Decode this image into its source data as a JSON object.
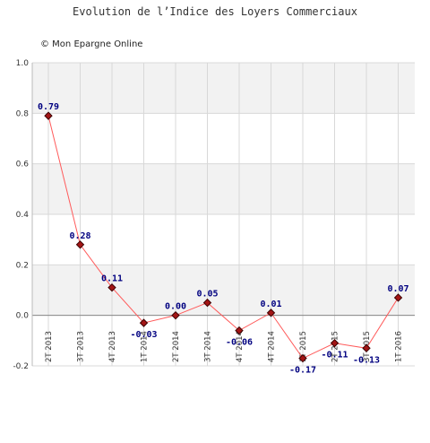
{
  "chart_data": {
    "type": "line",
    "title": "Evolution de l’Indice des Loyers Commerciaux",
    "credit": "© Mon Epargne Online",
    "categories": [
      "2T 2013",
      "3T 2013",
      "4T 2013",
      "1T 2014",
      "2T 2014",
      "3T 2014",
      "4T 2014",
      "4T 2014",
      "1T 2015",
      "2T 2015",
      "3T 2015",
      "1T 2016"
    ],
    "values": [
      0.79,
      0.28,
      0.11,
      -0.03,
      0.0,
      0.05,
      -0.06,
      0.01,
      -0.17,
      -0.11,
      -0.13,
      0.07
    ],
    "data_labels": [
      "0.79",
      "0.28",
      "0.11",
      "-0.03",
      "0.00",
      "0.05",
      "-0.06",
      "0.01",
      "-0.17",
      "-0.11",
      "-0.13",
      "0.07"
    ],
    "y_ticks": [
      "1.0",
      "0.8",
      "0.6",
      "0.4",
      "0.2",
      "0.0",
      "-0.2"
    ],
    "ylim": [
      -0.2,
      1.0
    ],
    "grid": true,
    "xlabel": "",
    "ylabel": "",
    "colors": {
      "line": "#ff5a5a",
      "marker_fill": "#a31515",
      "marker_stroke": "#3a0000",
      "label": "#000080",
      "band": "#f2f2f2",
      "grid": "#d8d8d8",
      "zero_line": "#888888"
    }
  }
}
